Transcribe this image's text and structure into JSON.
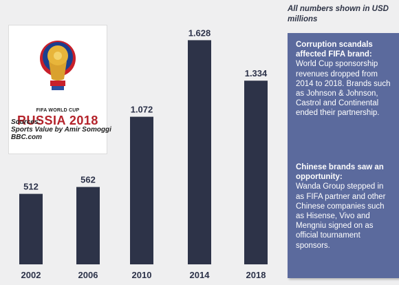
{
  "note": "All numbers shown in USD millions",
  "logo": {
    "small_text": "FIFA WORLD CUP",
    "big_text": "RUSSIA 2018"
  },
  "sources": {
    "label": "Sources:",
    "line1": "Sports Value by Amir Somoggi",
    "line2": "BBC.com"
  },
  "panel": {
    "block1": {
      "heading": "Corruption scandals affected FIFA brand:",
      "body": "World Cup sponsorship revenues dropped from 2014 to 2018. Brands such as Johnson & Johnson, Castrol and Continental ended their partnership."
    },
    "block2": {
      "heading": "Chinese brands saw an opportunity:",
      "body": "Wanda Group stepped in as FIFA partner and other Chinese companies such as Hisense, Vivo and Mengniu signed on as official tournament sponsors."
    }
  },
  "colors": {
    "bar": "#2d3348",
    "panel": "#5b6a9d",
    "background": "#efeff0"
  },
  "chart_data": {
    "type": "bar",
    "categories": [
      "2002",
      "2006",
      "2010",
      "2014",
      "2018"
    ],
    "values": [
      512,
      562,
      1072,
      1628,
      1334
    ],
    "value_labels": [
      "512",
      "562",
      "1.072",
      "1.628",
      "1.334"
    ],
    "title": "",
    "xlabel": "",
    "ylabel": "",
    "ylim": [
      0,
      1700
    ],
    "grid": false,
    "legend": "none"
  }
}
